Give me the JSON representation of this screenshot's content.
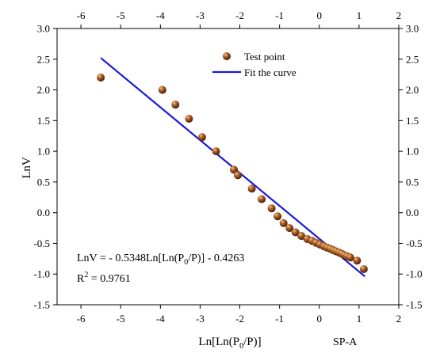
{
  "chart_data": {
    "type": "scatter",
    "xlabel": "Ln[Ln(P0/P)]",
    "ylabel": "LnV",
    "xlim": [
      -6.6,
      2.0
    ],
    "ylim": [
      -1.5,
      3.0
    ],
    "x_ticks": [
      -6,
      -5,
      -4,
      -3,
      -2,
      -1,
      0,
      1,
      2
    ],
    "y_ticks": [
      3.0,
      2.5,
      2.0,
      1.5,
      1.0,
      0.5,
      0.0,
      -0.5,
      -1.0,
      -1.5
    ],
    "mirrored_axes": true,
    "grid": false,
    "legend": {
      "position": "top-right",
      "entries": [
        {
          "label": "Test point",
          "marker": "sphere",
          "color": "#8a3a12"
        },
        {
          "label": "Fit the curve",
          "marker": "line",
          "color": "#1a1ad8"
        }
      ]
    },
    "series": [
      {
        "name": "Test point",
        "type": "scatter",
        "color": "#8a3a12",
        "points": [
          [
            -5.5,
            2.2
          ],
          [
            -3.95,
            2.0
          ],
          [
            -3.62,
            1.76
          ],
          [
            -3.28,
            1.53
          ],
          [
            -2.95,
            1.23
          ],
          [
            -2.6,
            1.0
          ],
          [
            -2.15,
            0.7
          ],
          [
            -2.05,
            0.61
          ],
          [
            -1.7,
            0.39
          ],
          [
            -1.45,
            0.22
          ],
          [
            -1.2,
            0.07
          ],
          [
            -1.05,
            -0.06
          ],
          [
            -0.9,
            -0.17
          ],
          [
            -0.75,
            -0.25
          ],
          [
            -0.6,
            -0.32
          ],
          [
            -0.45,
            -0.38
          ],
          [
            -0.3,
            -0.43
          ],
          [
            -0.18,
            -0.46
          ],
          [
            -0.08,
            -0.49
          ],
          [
            0.02,
            -0.52
          ],
          [
            0.12,
            -0.55
          ],
          [
            0.2,
            -0.57
          ],
          [
            0.28,
            -0.59
          ],
          [
            0.35,
            -0.61
          ],
          [
            0.42,
            -0.63
          ],
          [
            0.5,
            -0.65
          ],
          [
            0.57,
            -0.67
          ],
          [
            0.63,
            -0.69
          ],
          [
            0.7,
            -0.71
          ],
          [
            0.78,
            -0.73
          ],
          [
            0.95,
            -0.78
          ],
          [
            1.12,
            -0.92
          ]
        ]
      },
      {
        "name": "Fit the curve",
        "type": "line",
        "color": "#1a1ad8",
        "points": [
          [
            -5.5,
            2.52
          ],
          [
            1.15,
            -1.04
          ]
        ]
      }
    ],
    "annotations": {
      "equation": {
        "prefix": "LnV = - 0.5348Ln[Ln(P",
        "sub": "0",
        "suffix": "/P)] - 0.4263"
      },
      "r2": {
        "prefix": "R",
        "sup": "2",
        "suffix": " = 0.9761"
      }
    },
    "xlabel_parts": {
      "prefix": "Ln[Ln(P",
      "sub": "0",
      "suffix": "/P)]"
    }
  },
  "footer_label": "SP-A"
}
